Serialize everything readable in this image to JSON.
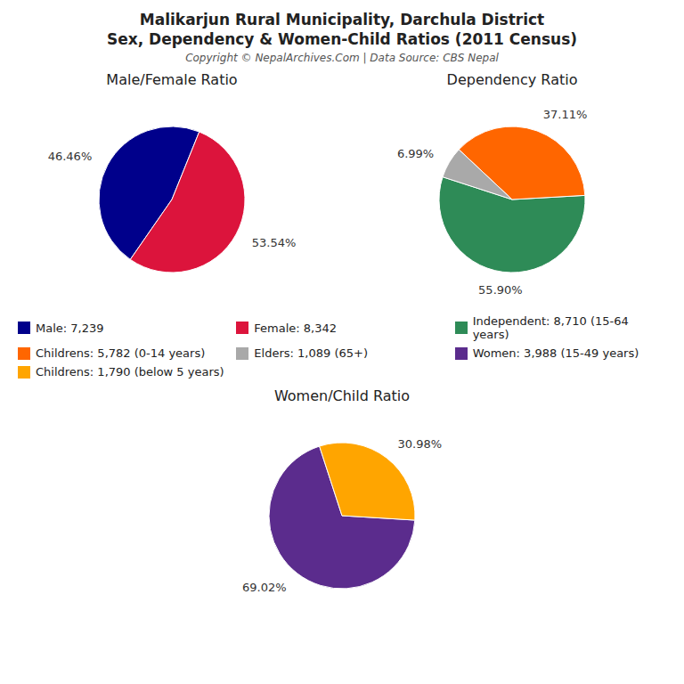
{
  "title": "Malikarjun Rural Municipality, Darchula District",
  "subtitle": "Sex, Dependency & Women-Child Ratios (2011 Census)",
  "annotations": [
    "Copyright © NepalArchives.Com | Data Source: CBS Nepal"
  ],
  "legend": "center",
  "chart_data": [
    {
      "type": "pie",
      "title": "Male/Female Ratio",
      "categories": [
        "Male: 7,239",
        "Female: 8,342"
      ],
      "values": [
        46.46,
        53.54
      ],
      "value_labels": [
        "46.46%",
        "53.54%"
      ],
      "colors": [
        "#00008B",
        "#DC143C"
      ],
      "data_labels": true
    },
    {
      "type": "pie",
      "title": "Dependency Ratio",
      "categories": [
        "Independent: 8,710 (15-64 years)",
        "Childrens: 5,782 (0-14 years)",
        "Elders: 1,089 (65+)"
      ],
      "values": [
        55.9,
        37.11,
        6.99
      ],
      "value_labels": [
        "55.90%",
        "37.11%",
        "6.99%"
      ],
      "colors": [
        "#2E8B57",
        "#FF6600",
        "#A9A9A9"
      ],
      "data_labels": true
    },
    {
      "type": "pie",
      "title": "Women/Child Ratio",
      "categories": [
        "Women: 3,988 (15-49 years)",
        "Childrens: 1,790 (below 5 years)"
      ],
      "values": [
        69.02,
        30.98
      ],
      "value_labels": [
        "69.02%",
        "30.98%"
      ],
      "colors": [
        "#5B2C8D",
        "#FFA500"
      ],
      "data_labels": true
    }
  ]
}
